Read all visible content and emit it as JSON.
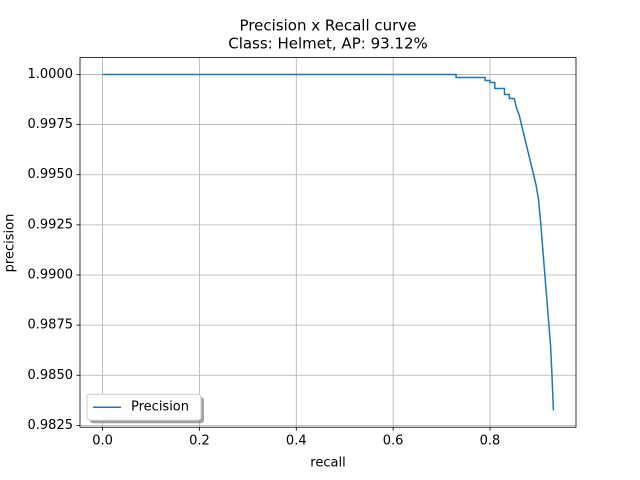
{
  "chart_data": {
    "type": "line",
    "title": "Precision x Recall curve",
    "subtitle": "Class: Helmet, AP: 93.12%",
    "x_label": "recall",
    "y_label": "precision",
    "x": [
      0,
      0.73,
      0.73,
      0.79,
      0.79,
      0.8,
      0.8,
      0.81,
      0.81,
      0.83,
      0.83,
      0.84,
      0.84,
      0.85,
      0.855,
      0.86,
      0.865,
      0.87,
      0.875,
      0.88,
      0.885,
      0.89,
      0.895,
      0.9,
      0.905,
      0.91,
      0.915,
      0.92,
      0.925,
      0.928,
      0.931
    ],
    "series": [
      {
        "name": "Precision",
        "color": "#1f77b4",
        "values": [
          1.0,
          1.0,
          0.99985,
          0.99985,
          0.9997,
          0.9997,
          0.9996,
          0.9996,
          0.9993,
          0.9993,
          0.999,
          0.999,
          0.9988,
          0.9988,
          0.9983,
          0.998,
          0.9975,
          0.997,
          0.9965,
          0.996,
          0.9955,
          0.995,
          0.9945,
          0.9938,
          0.9925,
          0.991,
          0.9895,
          0.988,
          0.9865,
          0.985,
          0.98325
        ]
      }
    ],
    "xlim": [
      -0.0466,
      0.9776
    ],
    "ylim": [
      0.98241,
      1.00084
    ],
    "xticks": [
      {
        "value": 0,
        "label": "0.0"
      },
      0.2,
      0.4,
      0.6,
      0.8
    ],
    "yticks": [
      {
        "value": 1,
        "label": "1.0000"
      },
      0.9975,
      {
        "value": 0.995,
        "label": "0.9950"
      },
      0.9925,
      {
        "value": 0.99,
        "label": "0.9900"
      },
      0.9875,
      {
        "value": 0.985,
        "label": "0.9850"
      },
      0.9825
    ],
    "grid": true,
    "legend": "lower left"
  }
}
